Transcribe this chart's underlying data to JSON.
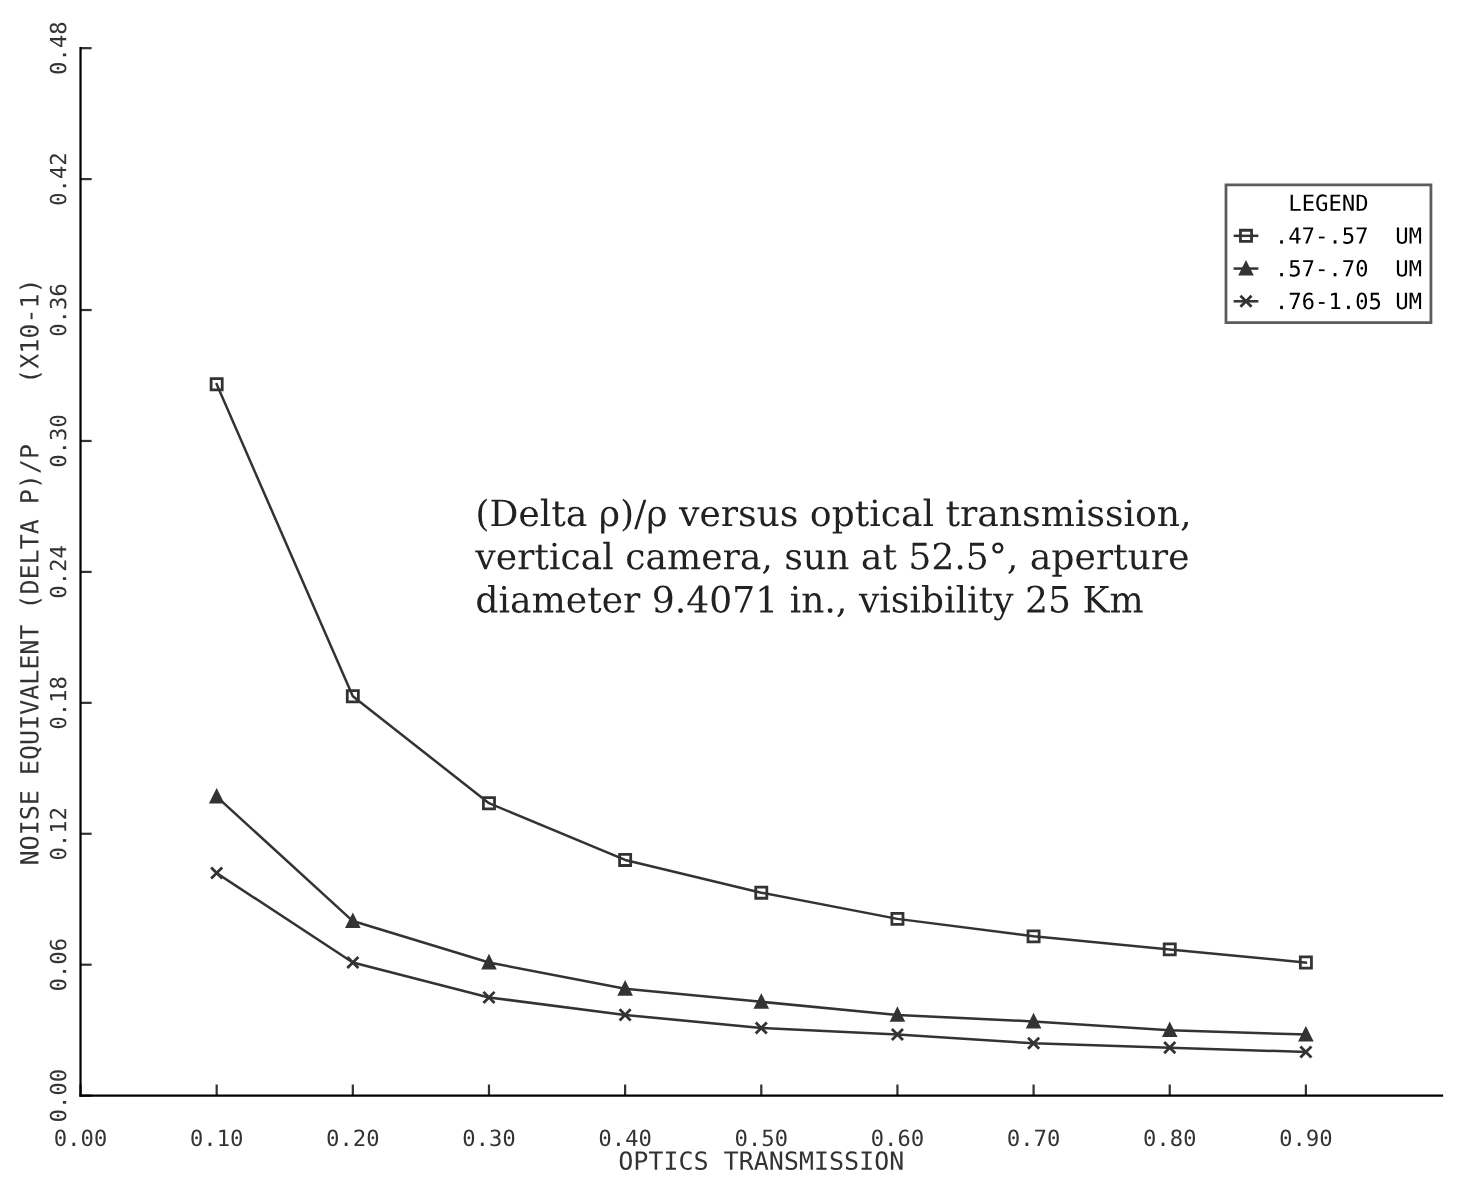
{
  "chart_data": {
    "type": "line",
    "xlabel": "OPTICS TRANSMISSION",
    "ylabel": "NOISE EQUIVALENT (DELTA P)/P    (X10-1)",
    "legend_title": "LEGEND",
    "annotations": [
      "(Delta ρ)/ρ versus optical transmission,\nvertical camera, sun at 52.5°, aperture\ndiameter 9.4071 in., visibility 25 Km"
    ],
    "x": [
      0.1,
      0.2,
      0.3,
      0.4,
      0.5,
      0.6,
      0.7,
      0.8,
      0.9
    ],
    "series": [
      {
        "name": ".47-.57  UM",
        "color": "#333333",
        "marker": "square",
        "values": [
          0.326,
          0.183,
          0.134,
          0.108,
          0.093,
          0.081,
          0.073,
          0.067,
          0.061
        ]
      },
      {
        "name": ".57-.70  UM",
        "color": "#333333",
        "marker": "triangle",
        "values": [
          0.137,
          0.08,
          0.061,
          0.049,
          0.043,
          0.037,
          0.034,
          0.03,
          0.028
        ]
      },
      {
        "name": ".76-1.05 UM",
        "color": "#333333",
        "marker": "cross",
        "values": [
          0.102,
          0.061,
          0.045,
          0.037,
          0.031,
          0.028,
          0.024,
          0.022,
          0.02
        ]
      }
    ],
    "xlim": [
      0,
      1.0
    ],
    "xticks": [
      {
        "value": 0,
        "label": "0.00"
      },
      {
        "value": 0.1,
        "label": "0.10"
      },
      {
        "value": 0.2,
        "label": "0.20"
      },
      {
        "value": 0.3,
        "label": "0.30"
      },
      {
        "value": 0.4,
        "label": "0.40"
      },
      {
        "value": 0.5,
        "label": "0.50"
      },
      {
        "value": 0.6,
        "label": "0.60"
      },
      {
        "value": 0.7,
        "label": "0.70"
      },
      {
        "value": 0.8,
        "label": "0.80"
      },
      {
        "value": 0.9,
        "label": "0.90"
      }
    ],
    "ylim": [
      0,
      0.48
    ],
    "yticks": [
      {
        "value": 0,
        "label": "0.00"
      },
      {
        "value": 0.06,
        "label": "0.06"
      },
      {
        "value": 0.12,
        "label": "0.12"
      },
      {
        "value": 0.18,
        "label": "0.18"
      },
      {
        "value": 0.24,
        "label": "0.24"
      },
      {
        "value": 0.3,
        "label": "0.30"
      },
      {
        "value": 0.36,
        "label": "0.36"
      },
      {
        "value": 0.42,
        "label": "0.42"
      },
      {
        "value": 0.48,
        "label": "0.48"
      }
    ],
    "grid": false,
    "legend": "top right",
    "line_style": "solid"
  }
}
